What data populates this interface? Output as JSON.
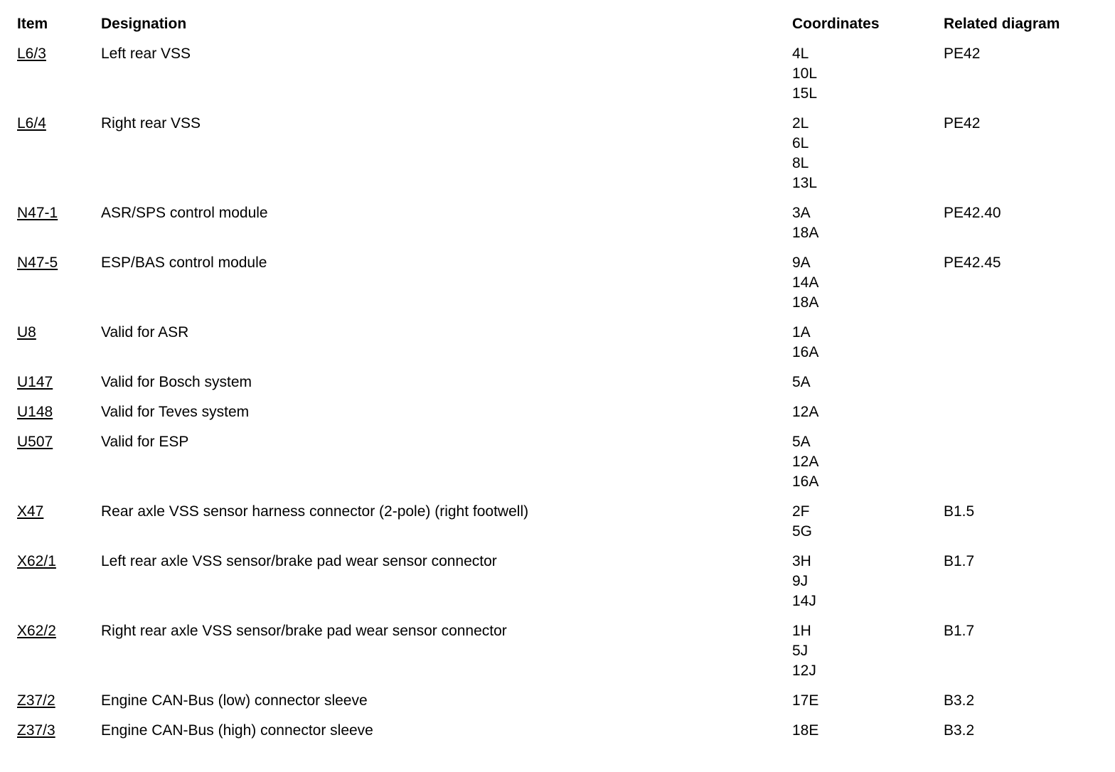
{
  "page": {
    "background_color": "#ffffff",
    "text_color": "#000000"
  },
  "table": {
    "columns": [
      {
        "key": "item",
        "label": "Item"
      },
      {
        "key": "designation",
        "label": "Designation"
      },
      {
        "key": "coordinates",
        "label": "Coordinates"
      },
      {
        "key": "related_diagram",
        "label": "Related diagram"
      }
    ],
    "rows": [
      {
        "item": "L6/3",
        "designation": "Left rear VSS",
        "coordinates": [
          "4L",
          "10L",
          "15L"
        ],
        "related_diagram": "PE42"
      },
      {
        "item": "L6/4",
        "designation": "Right rear VSS",
        "coordinates": [
          "2L",
          "6L",
          "8L",
          "13L"
        ],
        "related_diagram": "PE42"
      },
      {
        "item": "N47-1",
        "designation": "ASR/SPS control module",
        "coordinates": [
          "3A",
          "18A"
        ],
        "related_diagram": "PE42.40"
      },
      {
        "item": "N47-5",
        "designation": "ESP/BAS control module",
        "coordinates": [
          "9A",
          "14A",
          "18A"
        ],
        "related_diagram": "PE42.45"
      },
      {
        "item": "U8",
        "designation": "Valid for ASR",
        "coordinates": [
          "1A",
          "16A"
        ],
        "related_diagram": ""
      },
      {
        "item": "U147",
        "designation": "Valid for Bosch system",
        "coordinates": [
          "5A"
        ],
        "related_diagram": ""
      },
      {
        "item": "U148",
        "designation": "Valid for Teves system",
        "coordinates": [
          "12A"
        ],
        "related_diagram": ""
      },
      {
        "item": "U507",
        "designation": "Valid for ESP",
        "coordinates": [
          "5A",
          "12A",
          "16A"
        ],
        "related_diagram": ""
      },
      {
        "item": "X47",
        "designation": "Rear axle VSS sensor harness connector (2-pole) (right footwell)",
        "coordinates": [
          "2F",
          "5G"
        ],
        "related_diagram": "B1.5"
      },
      {
        "item": "X62/1",
        "designation": "Left rear axle VSS sensor/brake pad wear sensor connector",
        "coordinates": [
          "3H",
          "9J",
          "14J"
        ],
        "related_diagram": "B1.7"
      },
      {
        "item": "X62/2",
        "designation": "Right rear axle VSS sensor/brake pad wear sensor connector",
        "coordinates": [
          "1H",
          "5J",
          "12J"
        ],
        "related_diagram": "B1.7"
      },
      {
        "item": "Z37/2",
        "designation": "Engine CAN-Bus (low) connector sleeve",
        "coordinates": [
          "17E"
        ],
        "related_diagram": "B3.2"
      },
      {
        "item": "Z37/3",
        "designation": "Engine CAN-Bus (high) connector sleeve",
        "coordinates": [
          "18E"
        ],
        "related_diagram": "B3.2"
      }
    ]
  }
}
